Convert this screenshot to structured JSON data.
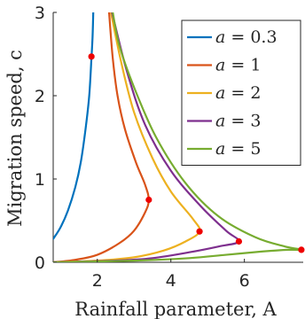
{
  "chart_data": {
    "type": "line",
    "xlabel": "Rainfall parameter, A",
    "ylabel": "Migration speed, c",
    "xlim": [
      0.8,
      7.6
    ],
    "ylim": [
      0,
      3
    ],
    "xticks": [
      2,
      4,
      6
    ],
    "yticks": [
      0,
      1,
      2,
      3
    ],
    "grid": false,
    "legend_position": "top-right",
    "series": [
      {
        "name": "a = 0.3",
        "legend_symbol": "a",
        "legend_value": "= 0.3",
        "color": "#0072BD",
        "points": [
          [
            0.8,
            0.28
          ],
          [
            1.0,
            0.42
          ],
          [
            1.2,
            0.62
          ],
          [
            1.4,
            0.9
          ],
          [
            1.55,
            1.2
          ],
          [
            1.68,
            1.6
          ],
          [
            1.78,
            2.0
          ],
          [
            1.84,
            2.45
          ],
          [
            1.87,
            2.7
          ],
          [
            1.89,
            3.0
          ]
        ],
        "marker": [
          1.84,
          2.47
        ]
      },
      {
        "name": "a = 1",
        "legend_symbol": "a",
        "legend_value": "= 1",
        "color": "#D95319",
        "points": [
          [
            0.8,
            0.0
          ],
          [
            1.4,
            0.03
          ],
          [
            2.0,
            0.09
          ],
          [
            2.6,
            0.23
          ],
          [
            3.0,
            0.38
          ],
          [
            3.3,
            0.6
          ],
          [
            3.4,
            0.75
          ],
          [
            3.3,
            0.93
          ],
          [
            3.05,
            1.2
          ],
          [
            2.75,
            1.6
          ],
          [
            2.55,
            2.0
          ],
          [
            2.42,
            2.45
          ],
          [
            2.32,
            3.0
          ]
        ],
        "marker": [
          3.4,
          0.75
        ]
      },
      {
        "name": "a = 2",
        "legend_symbol": "a",
        "legend_value": "= 2",
        "color": "#EDB120",
        "points": [
          [
            0.8,
            0.0
          ],
          [
            2.0,
            0.02
          ],
          [
            3.0,
            0.06
          ],
          [
            3.8,
            0.14
          ],
          [
            4.4,
            0.25
          ],
          [
            4.78,
            0.37
          ],
          [
            4.6,
            0.52
          ],
          [
            4.0,
            0.85
          ],
          [
            3.5,
            1.25
          ],
          [
            3.0,
            1.8
          ],
          [
            2.65,
            2.4
          ],
          [
            2.37,
            3.0
          ]
        ],
        "marker": [
          4.78,
          0.37
        ]
      },
      {
        "name": "a = 3",
        "legend_symbol": "a",
        "legend_value": "= 3",
        "color": "#7E2F8E",
        "points": [
          [
            0.8,
            0.0
          ],
          [
            2.5,
            0.02
          ],
          [
            3.5,
            0.05
          ],
          [
            4.5,
            0.12
          ],
          [
            5.3,
            0.19
          ],
          [
            5.85,
            0.25
          ],
          [
            5.5,
            0.38
          ],
          [
            4.8,
            0.68
          ],
          [
            4.0,
            1.1
          ],
          [
            3.3,
            1.65
          ],
          [
            2.8,
            2.3
          ],
          [
            2.4,
            3.0
          ]
        ],
        "marker": [
          5.85,
          0.25
        ]
      },
      {
        "name": "a = 5",
        "legend_symbol": "a",
        "legend_value": "= 5",
        "color": "#77AC30",
        "points": [
          [
            0.8,
            0.0
          ],
          [
            3.0,
            0.02
          ],
          [
            4.5,
            0.05
          ],
          [
            5.5,
            0.09
          ],
          [
            6.5,
            0.13
          ],
          [
            7.2,
            0.15
          ],
          [
            7.6,
            0.15
          ],
          [
            7.1,
            0.19
          ],
          [
            6.3,
            0.3
          ],
          [
            5.3,
            0.55
          ],
          [
            4.4,
            0.95
          ],
          [
            3.6,
            1.5
          ],
          [
            3.0,
            2.1
          ],
          [
            2.6,
            2.6
          ],
          [
            2.42,
            3.0
          ]
        ],
        "marker": [
          7.55,
          0.15
        ]
      }
    ],
    "marker_color": "#ee0000"
  }
}
